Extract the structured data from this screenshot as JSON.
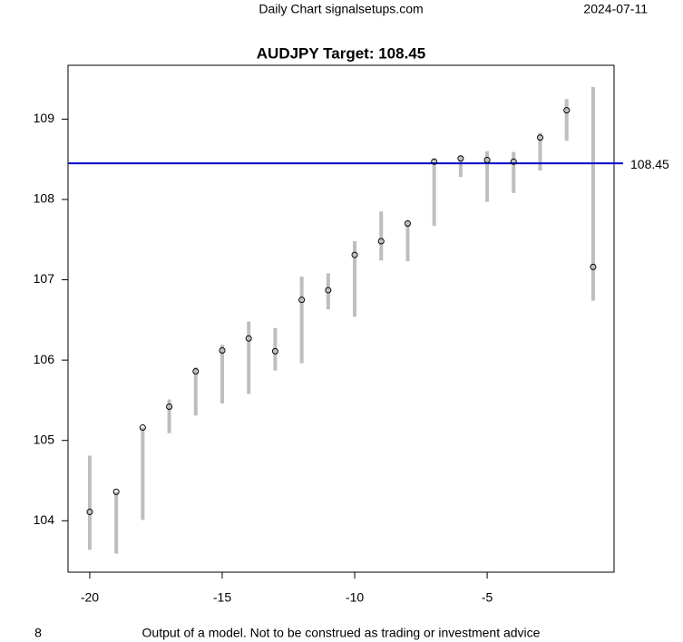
{
  "chart_data": {
    "type": "range",
    "header": "Daily Chart signalsetups.com",
    "date": "2024-07-11",
    "title": "AUDJPY Target: 108.45",
    "footnote_number": "8",
    "footnote": "Output of a model. Not to be construed as trading or investment advice",
    "x": [
      -20,
      -19,
      -18,
      -17,
      -16,
      -15,
      -14,
      -13,
      -12,
      -11,
      -10,
      -9,
      -8,
      -7,
      -6,
      -5,
      -4,
      -3,
      -2,
      -1
    ],
    "series": [
      {
        "name": "close",
        "color": "#000000",
        "values": [
          104.11,
          104.36,
          105.16,
          105.42,
          105.86,
          106.12,
          106.27,
          106.11,
          106.75,
          106.87,
          107.31,
          107.48,
          107.7,
          108.47,
          108.51,
          108.49,
          108.47,
          108.77,
          109.11,
          107.16
        ]
      },
      {
        "name": "low",
        "color": "#bebebe",
        "values": [
          103.64,
          103.59,
          104.01,
          105.09,
          105.31,
          105.46,
          105.58,
          105.87,
          105.96,
          106.63,
          106.54,
          107.24,
          107.23,
          107.67,
          108.28,
          107.97,
          108.08,
          108.36,
          108.73,
          106.74
        ]
      },
      {
        "name": "high",
        "color": "#bebebe",
        "values": [
          104.81,
          104.36,
          105.16,
          105.51,
          105.91,
          106.19,
          106.48,
          106.4,
          107.04,
          107.08,
          107.48,
          107.85,
          107.74,
          108.51,
          108.54,
          108.6,
          108.59,
          108.83,
          109.25,
          109.4
        ]
      }
    ],
    "target": 108.45,
    "target_color": "#0000cd",
    "xlim": [
      -20.82,
      -0.21
    ],
    "xticks": [
      -20,
      -15,
      -10,
      -5
    ],
    "ylim": [
      103.36,
      109.67
    ],
    "yticks": [
      104,
      105,
      106,
      107,
      108,
      109
    ]
  }
}
